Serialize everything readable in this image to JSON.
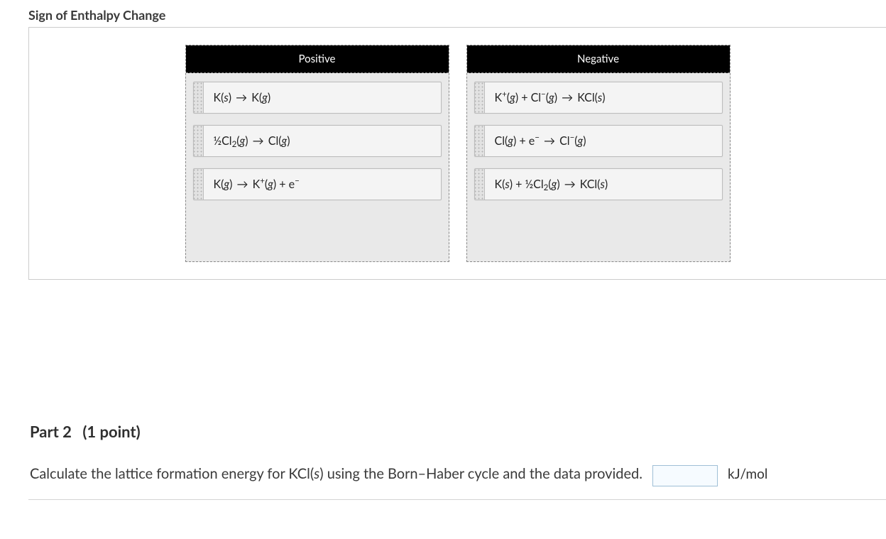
{
  "section": {
    "title": "Sign of Enthalpy Change"
  },
  "bins": {
    "positive": {
      "header": "Positive",
      "cards": [
        {
          "html": "K(<span class='it'>s</span>) <span class='arrow'>→</span> K(<span class='it'>g</span>)"
        },
        {
          "html": "½Cl<sub>2</sub>(<span class='it'>g</span>) <span class='arrow'>→</span> Cl(<span class='it'>g</span>)"
        },
        {
          "html": "K(<span class='it'>g</span>) <span class='arrow'>→</span> K<sup>+</sup>(<span class='it'>g</span>) + e<sup>−</sup>"
        }
      ]
    },
    "negative": {
      "header": "Negative",
      "cards": [
        {
          "html": "K<sup>+</sup>(<span class='it'>g</span>) + Cl<sup>−</sup>(<span class='it'>g</span>) <span class='arrow'>→</span> KCl(<span class='it'>s</span>)"
        },
        {
          "html": "Cl(<span class='it'>g</span>) + e<sup>−</sup> <span class='arrow'>→</span> Cl<sup>−</sup>(<span class='it'>g</span>)"
        },
        {
          "html": "K(<span class='it'>s</span>) + ½Cl<sub>2</sub>(<span class='it'>g</span>) <span class='arrow'>→</span> KCl(<span class='it'>s</span>)"
        }
      ]
    }
  },
  "part2": {
    "label": "Part 2",
    "points": "(1 point)",
    "prompt_html": "Calculate the lattice formation energy for KCl(<span class='it'>s</span>) using the Born–Haber cycle and the data provided.",
    "answer_value": "",
    "unit": "kJ/mol"
  }
}
